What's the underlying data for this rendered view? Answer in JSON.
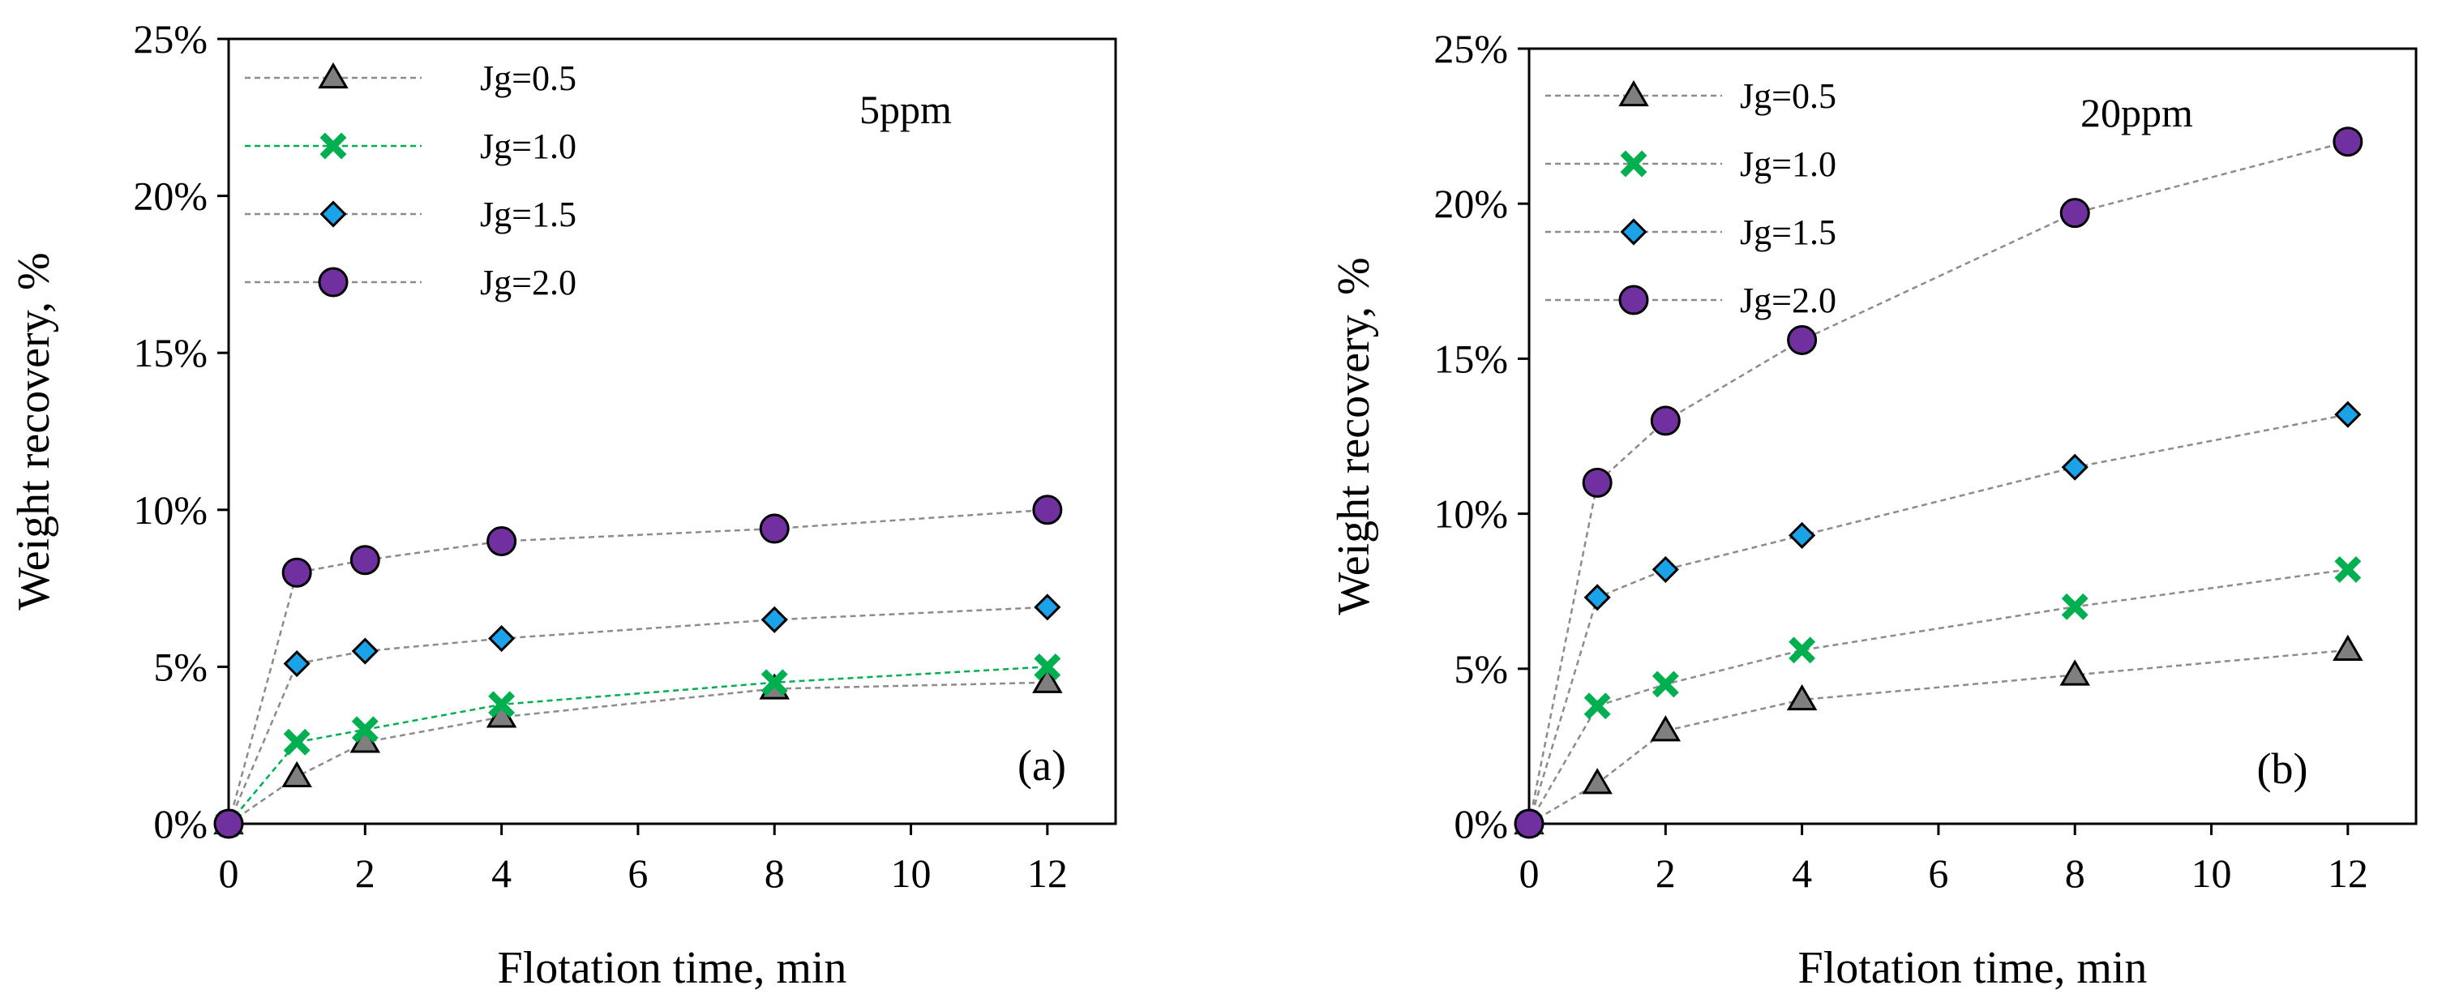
{
  "colors": {
    "background": "#ffffff",
    "axis": "#000000",
    "guide_line": "#8c8c8c",
    "jg05_fill": "#7f7f7f",
    "jg10_stroke": "#00b050",
    "jg15_fill": "#1aa3e8",
    "jg20_fill": "#7030a0",
    "marker_edge": "#000000"
  },
  "chart_data": [
    {
      "type": "line",
      "panel_label": "(a)",
      "annotation": "5ppm",
      "xlabel": "Flotation time, min",
      "ylabel": "Weight recovery, %",
      "xlim": [
        0,
        13
      ],
      "ylim": [
        0,
        25
      ],
      "x_ticks": [
        0,
        2,
        4,
        6,
        8,
        10,
        12
      ],
      "y_ticks": [
        0,
        5,
        10,
        15,
        20,
        25
      ],
      "y_tick_labels": [
        "0%",
        "5%",
        "10%",
        "15%",
        "20%",
        "25%"
      ],
      "legend_position": "top-left",
      "x": [
        0,
        1,
        2,
        4,
        8,
        12
      ],
      "series": [
        {
          "name": "Jg=0.5",
          "marker": "triangle",
          "line": "gray",
          "values": [
            0,
            1.5,
            2.6,
            3.4,
            4.3,
            4.5
          ]
        },
        {
          "name": "Jg=1.0",
          "marker": "x",
          "line": "green",
          "values": [
            0,
            2.6,
            3.0,
            3.8,
            4.5,
            5.0
          ]
        },
        {
          "name": "Jg=1.5",
          "marker": "diamond",
          "line": "gray",
          "values": [
            0,
            5.1,
            5.5,
            5.9,
            6.5,
            6.9
          ]
        },
        {
          "name": "Jg=2.0",
          "marker": "circle",
          "line": "gray",
          "values": [
            0,
            8.0,
            8.4,
            9.0,
            9.4,
            10.0
          ]
        }
      ]
    },
    {
      "type": "line",
      "panel_label": "(b)",
      "annotation": "20ppm",
      "xlabel": "Flotation time, min",
      "ylabel": "Weight recovery, %",
      "xlim": [
        0,
        13
      ],
      "ylim": [
        0,
        25
      ],
      "x_ticks": [
        0,
        2,
        4,
        6,
        8,
        10,
        12
      ],
      "y_ticks": [
        0,
        5,
        10,
        15,
        20,
        25
      ],
      "y_tick_labels": [
        "0%",
        "5%",
        "10%",
        "15%",
        "20%",
        "25%"
      ],
      "legend_position": "top-left",
      "x": [
        0,
        1,
        2,
        4,
        8,
        12
      ],
      "series": [
        {
          "name": "Jg=0.5",
          "marker": "triangle",
          "line": "gray",
          "values": [
            0,
            1.3,
            3.0,
            4.0,
            4.8,
            5.6
          ]
        },
        {
          "name": "Jg=1.0",
          "marker": "x",
          "line": "gray",
          "values": [
            0,
            3.8,
            4.5,
            5.6,
            7.0,
            8.2
          ]
        },
        {
          "name": "Jg=1.5",
          "marker": "diamond",
          "line": "gray",
          "values": [
            0,
            7.3,
            8.2,
            9.3,
            11.5,
            13.2
          ]
        },
        {
          "name": "Jg=2.0",
          "marker": "circle",
          "line": "gray",
          "values": [
            0,
            11.0,
            13.0,
            15.6,
            19.7,
            22.0
          ]
        }
      ]
    }
  ]
}
